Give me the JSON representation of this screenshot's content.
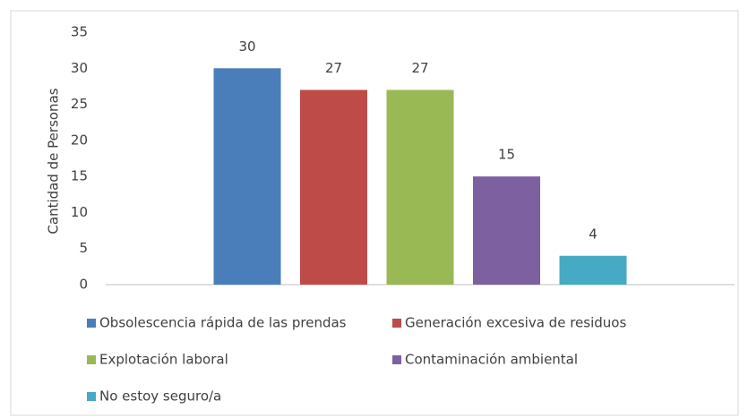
{
  "chart_data": {
    "type": "bar",
    "y_label": "Cantidad de Personas",
    "categories": [
      null
    ],
    "series": [
      {
        "name": "Obsolescencia rápida de las prendas",
        "color": "#4a7ebb",
        "values": [
          30
        ]
      },
      {
        "name": "Generación excesiva de residuos",
        "color": "#be4b48",
        "values": [
          27
        ]
      },
      {
        "name": "Explotación laboral",
        "color": "#98b954",
        "values": [
          27
        ]
      },
      {
        "name": "Contaminación ambiental",
        "color": "#7d60a0",
        "values": [
          15
        ]
      },
      {
        "name": "No estoy seguro/a",
        "color": "#46aac5",
        "values": [
          4
        ]
      }
    ],
    "ylim": [
      0,
      35
    ],
    "yticks": [
      0,
      5,
      10,
      15,
      20,
      25,
      30,
      35
    ],
    "grid": false,
    "legend": "bottom"
  }
}
